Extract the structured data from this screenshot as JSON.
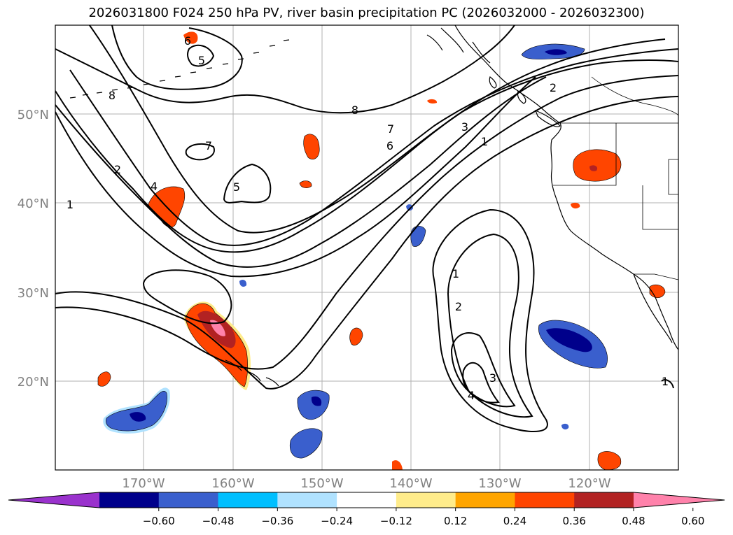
{
  "map": {
    "title": "2026031800 F024 250 hPa PV, river basin precipitation PC (2026032000 - 2026032300)",
    "lat_labels": [
      "50°N",
      "40°N",
      "30°N",
      "20°N"
    ],
    "lon_labels": [
      "170°W",
      "160°W",
      "150°W",
      "140°W",
      "130°W",
      "120°W"
    ],
    "pv_contour_labels": [
      "6",
      "5",
      "8",
      "7",
      "7",
      "6",
      "5",
      "4",
      "3",
      "2",
      "2",
      "1",
      "1",
      "1",
      "2",
      "3",
      "4",
      "1",
      "8"
    ],
    "colorbar": {
      "tick_labels": [
        "−0.60",
        "−0.48",
        "−0.36",
        "−0.24",
        "−0.12",
        "0.12",
        "0.24",
        "0.36",
        "0.48",
        "0.60"
      ],
      "colors": [
        "#9a32cd",
        "#00008b",
        "#3a5fcd",
        "#00bfff",
        "#b0e2ff",
        "#ffffff",
        "#ffec8b",
        "#ffa500",
        "#ff4500",
        "#b22222",
        "#ff82ab"
      ]
    }
  }
}
